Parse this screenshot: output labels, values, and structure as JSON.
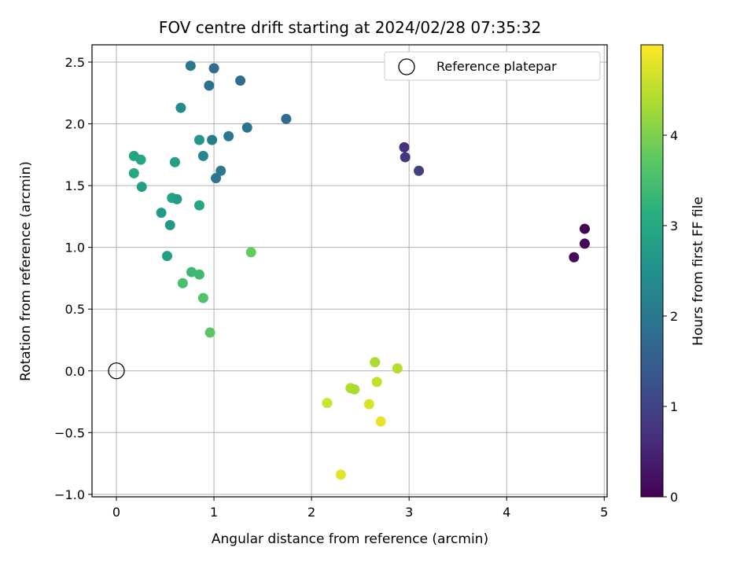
{
  "chart_data": {
    "type": "scatter",
    "title": "FOV centre drift starting at 2024/02/28 07:35:32",
    "xlabel": "Angular distance from reference (arcmin)",
    "ylabel": "Rotation from reference (arcmin)",
    "xlim": [
      -0.25,
      5.03
    ],
    "ylim": [
      -1.02,
      2.64
    ],
    "xticks": [
      0,
      1,
      2,
      3,
      4,
      5
    ],
    "yticks": [
      -1.0,
      -0.5,
      0.0,
      0.5,
      1.0,
      1.5,
      2.0,
      2.5
    ],
    "grid": true,
    "legend": {
      "placement": "top-right",
      "entries": [
        {
          "label": "Reference platepar",
          "marker": "open-circle"
        }
      ]
    },
    "reference_point": {
      "x": 0.0,
      "y": 0.0
    },
    "colorbar": {
      "label": "Hours from first FF file",
      "colormap": "viridis",
      "range": [
        0,
        5.0
      ],
      "ticks": [
        0,
        1,
        2,
        3,
        4
      ]
    },
    "points": [
      {
        "x": 4.8,
        "y": 1.15,
        "hours": 0.0
      },
      {
        "x": 4.8,
        "y": 1.03,
        "hours": 0.05
      },
      {
        "x": 4.69,
        "y": 0.92,
        "hours": 0.15
      },
      {
        "x": 2.95,
        "y": 1.81,
        "hours": 0.7
      },
      {
        "x": 2.96,
        "y": 1.73,
        "hours": 0.8
      },
      {
        "x": 3.1,
        "y": 1.62,
        "hours": 0.95
      },
      {
        "x": 1.74,
        "y": 2.04,
        "hours": 1.8
      },
      {
        "x": 1.34,
        "y": 1.97,
        "hours": 1.9
      },
      {
        "x": 1.27,
        "y": 2.35,
        "hours": 1.75
      },
      {
        "x": 1.0,
        "y": 2.45,
        "hours": 1.75
      },
      {
        "x": 0.76,
        "y": 2.47,
        "hours": 2.0
      },
      {
        "x": 0.95,
        "y": 2.31,
        "hours": 1.85
      },
      {
        "x": 1.15,
        "y": 1.9,
        "hours": 2.0
      },
      {
        "x": 0.98,
        "y": 1.87,
        "hours": 2.1
      },
      {
        "x": 1.07,
        "y": 1.62,
        "hours": 2.05
      },
      {
        "x": 1.02,
        "y": 1.56,
        "hours": 1.95
      },
      {
        "x": 0.66,
        "y": 2.13,
        "hours": 2.4
      },
      {
        "x": 0.89,
        "y": 1.74,
        "hours": 2.3
      },
      {
        "x": 0.85,
        "y": 1.87,
        "hours": 2.6
      },
      {
        "x": 0.6,
        "y": 1.69,
        "hours": 2.8
      },
      {
        "x": 0.18,
        "y": 1.74,
        "hours": 2.9
      },
      {
        "x": 0.25,
        "y": 1.71,
        "hours": 2.95
      },
      {
        "x": 0.18,
        "y": 1.6,
        "hours": 3.0
      },
      {
        "x": 0.26,
        "y": 1.49,
        "hours": 2.8
      },
      {
        "x": 0.57,
        "y": 1.4,
        "hours": 2.9
      },
      {
        "x": 0.62,
        "y": 1.39,
        "hours": 2.75
      },
      {
        "x": 0.85,
        "y": 1.34,
        "hours": 2.95
      },
      {
        "x": 0.46,
        "y": 1.28,
        "hours": 2.7
      },
      {
        "x": 0.55,
        "y": 1.18,
        "hours": 2.7
      },
      {
        "x": 0.52,
        "y": 0.93,
        "hours": 2.8
      },
      {
        "x": 0.77,
        "y": 0.8,
        "hours": 3.35
      },
      {
        "x": 0.85,
        "y": 0.78,
        "hours": 3.4
      },
      {
        "x": 0.68,
        "y": 0.71,
        "hours": 3.5
      },
      {
        "x": 1.38,
        "y": 0.96,
        "hours": 3.8
      },
      {
        "x": 0.89,
        "y": 0.59,
        "hours": 3.6
      },
      {
        "x": 0.96,
        "y": 0.31,
        "hours": 3.7
      },
      {
        "x": 2.65,
        "y": 0.07,
        "hours": 4.35
      },
      {
        "x": 2.88,
        "y": 0.02,
        "hours": 4.45
      },
      {
        "x": 2.67,
        "y": -0.09,
        "hours": 4.55
      },
      {
        "x": 2.4,
        "y": -0.14,
        "hours": 4.4
      },
      {
        "x": 2.44,
        "y": -0.15,
        "hours": 4.35
      },
      {
        "x": 2.16,
        "y": -0.26,
        "hours": 4.65
      },
      {
        "x": 2.59,
        "y": -0.27,
        "hours": 4.7
      },
      {
        "x": 2.71,
        "y": -0.41,
        "hours": 4.85
      },
      {
        "x": 2.3,
        "y": -0.84,
        "hours": 4.8
      }
    ]
  }
}
